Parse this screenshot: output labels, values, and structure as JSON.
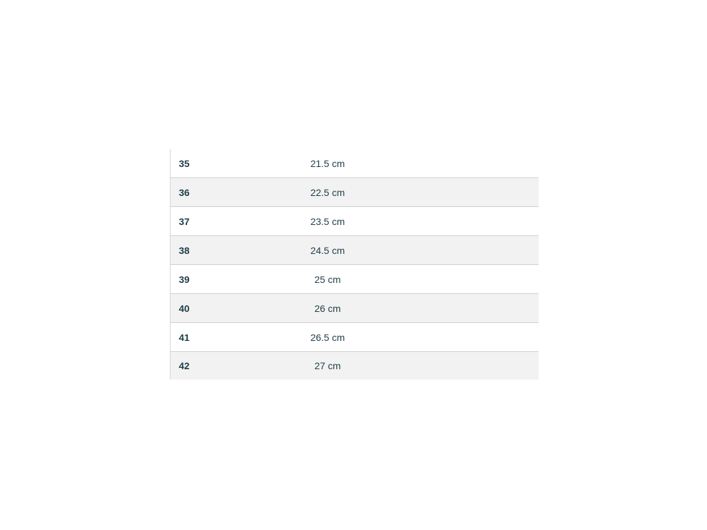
{
  "size_table": {
    "rows": [
      {
        "size": "35",
        "length": "21.5 cm"
      },
      {
        "size": "36",
        "length": "22.5 cm"
      },
      {
        "size": "37",
        "length": "23.5 cm"
      },
      {
        "size": "38",
        "length": "24.5 cm"
      },
      {
        "size": "39",
        "length": "25 cm"
      },
      {
        "size": "40",
        "length": "26 cm"
      },
      {
        "size": "41",
        "length": "26.5 cm"
      },
      {
        "size": "42",
        "length": "27 cm"
      }
    ]
  }
}
